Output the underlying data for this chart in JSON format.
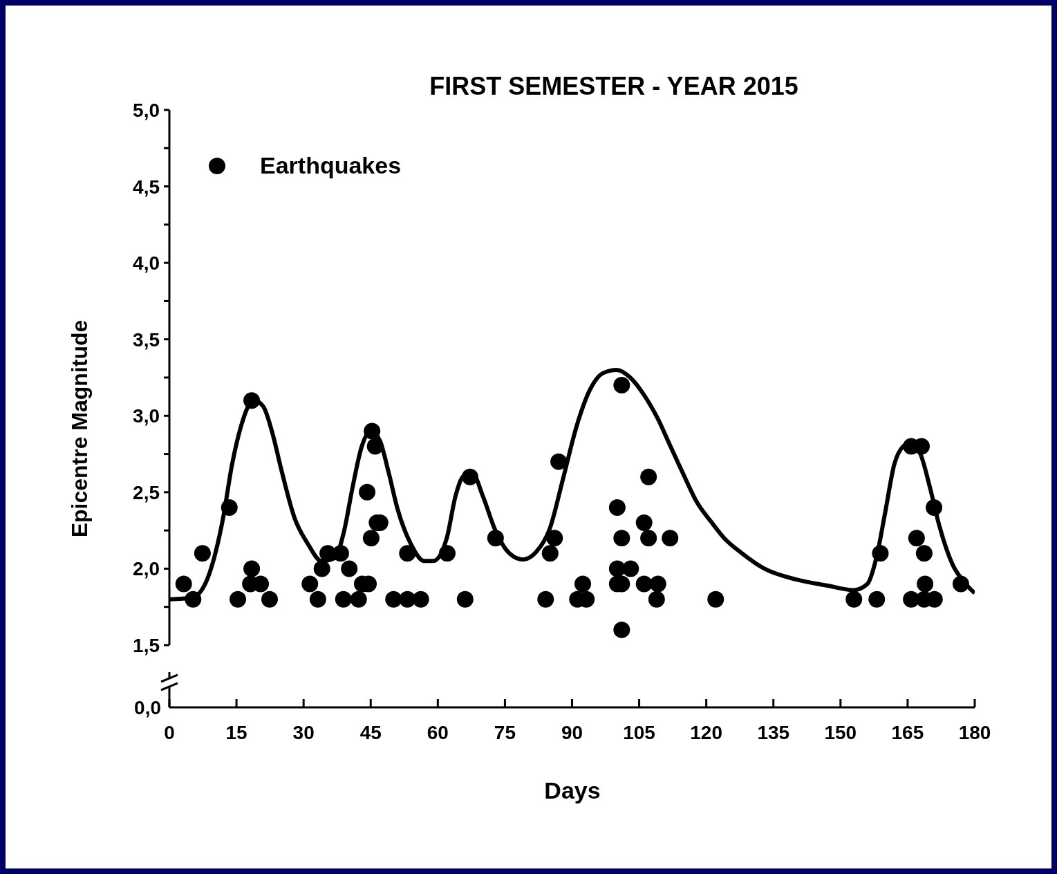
{
  "chart_data": {
    "type": "scatter",
    "title": "FIRST SEMESTER - YEAR 2015",
    "xlabel": "Days",
    "ylabel": "Epicentre Magnitude",
    "xlim": [
      0,
      180
    ],
    "xticks": [
      0,
      15,
      30,
      45,
      60,
      75,
      90,
      105,
      120,
      135,
      150,
      165,
      180
    ],
    "ylim": [
      1.5,
      5
    ],
    "yticks": [
      {
        "value": 1.5,
        "label": "1,5"
      },
      {
        "value": 1.75,
        "label": null
      },
      {
        "value": 2,
        "label": "2,0"
      },
      {
        "value": 2.25,
        "label": null
      },
      {
        "value": 2.5,
        "label": "2,5"
      },
      {
        "value": 2.75,
        "label": null
      },
      {
        "value": 3,
        "label": "3,0"
      },
      {
        "value": 3.25,
        "label": null
      },
      {
        "value": 3.5,
        "label": "3,5"
      },
      {
        "value": 3.75,
        "label": null
      },
      {
        "value": 4,
        "label": "4,0"
      },
      {
        "value": 4.25,
        "label": null
      },
      {
        "value": 4.5,
        "label": "4,5"
      },
      {
        "value": 4.75,
        "label": null
      },
      {
        "value": 5,
        "label": "5,0"
      }
    ],
    "annotations": [
      "0,0"
    ],
    "legend": "top left",
    "marker": "circle",
    "grid": false,
    "series": [
      {
        "name": "Earthquakes",
        "type": "scatter",
        "color": "#000000",
        "x": [
          3.2,
          5.3,
          7.4,
          13.4,
          15.3,
          18.4,
          18.4,
          18.1,
          20.4,
          22.4,
          31.4,
          33.2,
          34.1,
          35.4,
          38.3,
          38.9,
          40.2,
          42.3,
          43.1,
          44.5,
          44.2,
          45.3,
          45.1,
          46.0,
          46.4,
          47.1,
          50.1,
          53.2,
          53.2,
          56.2,
          62.1,
          66.1,
          67.2,
          72.9,
          84.1,
          85.1,
          86.1,
          87.0,
          91.2,
          92.4,
          93.2,
          100.1,
          100.1,
          100.1,
          101.1,
          101.1,
          101.1,
          101.1,
          103.1,
          106.1,
          106.1,
          107.1,
          107.1,
          109.2,
          108.9,
          111.9,
          122.1,
          153.0,
          158.1,
          158.9,
          165.8,
          165.8,
          167.0,
          168.1,
          168.7,
          168.9,
          168.7,
          171.0,
          170.9,
          176.9
        ],
        "values": [
          1.9,
          1.8,
          2.1,
          2.4,
          1.8,
          3.1,
          2.0,
          1.9,
          1.9,
          1.8,
          1.9,
          1.8,
          2.0,
          2.1,
          2.1,
          1.8,
          2.0,
          1.8,
          1.9,
          1.9,
          2.5,
          2.9,
          2.2,
          2.8,
          2.3,
          2.3,
          1.8,
          2.1,
          1.8,
          1.8,
          2.1,
          1.8,
          2.6,
          2.2,
          1.8,
          2.1,
          2.2,
          2.7,
          1.8,
          1.9,
          1.8,
          2.4,
          2.0,
          1.9,
          3.2,
          2.2,
          1.9,
          1.6,
          2.0,
          2.3,
          1.9,
          2.6,
          2.2,
          1.9,
          1.8,
          2.2,
          1.8,
          1.8,
          1.8,
          2.1,
          2.8,
          1.8,
          2.2,
          2.8,
          2.1,
          1.9,
          1.8,
          1.8,
          2.4,
          1.9
        ]
      },
      {
        "type": "line",
        "color": "#000000",
        "line_style": "solid",
        "marker": "none",
        "x": [
          0,
          5,
          8,
          10,
          12,
          14,
          16,
          18,
          19,
          21,
          23,
          25,
          28,
          31,
          34,
          37,
          39,
          41,
          43,
          45,
          47,
          49,
          51,
          54,
          57,
          59,
          62,
          64,
          66,
          68,
          70,
          73,
          76,
          79,
          82,
          85,
          88,
          91,
          94,
          97,
          100,
          103,
          106,
          109,
          112,
          115,
          118,
          121,
          124,
          128,
          133,
          140,
          147,
          153,
          156,
          158,
          160,
          162,
          164,
          166,
          168,
          170,
          172,
          175,
          178,
          180
        ],
        "values": [
          1.8,
          1.81,
          1.9,
          2.07,
          2.33,
          2.68,
          2.93,
          3.08,
          3.1,
          3.06,
          2.89,
          2.65,
          2.33,
          2.16,
          2.05,
          2.07,
          2.24,
          2.54,
          2.8,
          2.9,
          2.84,
          2.63,
          2.39,
          2.16,
          2.05,
          2.05,
          2.2,
          2.48,
          2.61,
          2.61,
          2.48,
          2.24,
          2.1,
          2.06,
          2.11,
          2.26,
          2.59,
          2.93,
          3.17,
          3.28,
          3.3,
          3.25,
          3.14,
          2.99,
          2.8,
          2.61,
          2.43,
          2.31,
          2.2,
          2.1,
          2.0,
          1.93,
          1.89,
          1.86,
          1.9,
          2.07,
          2.37,
          2.68,
          2.8,
          2.83,
          2.74,
          2.53,
          2.29,
          2.03,
          1.9,
          1.84
        ]
      }
    ]
  }
}
